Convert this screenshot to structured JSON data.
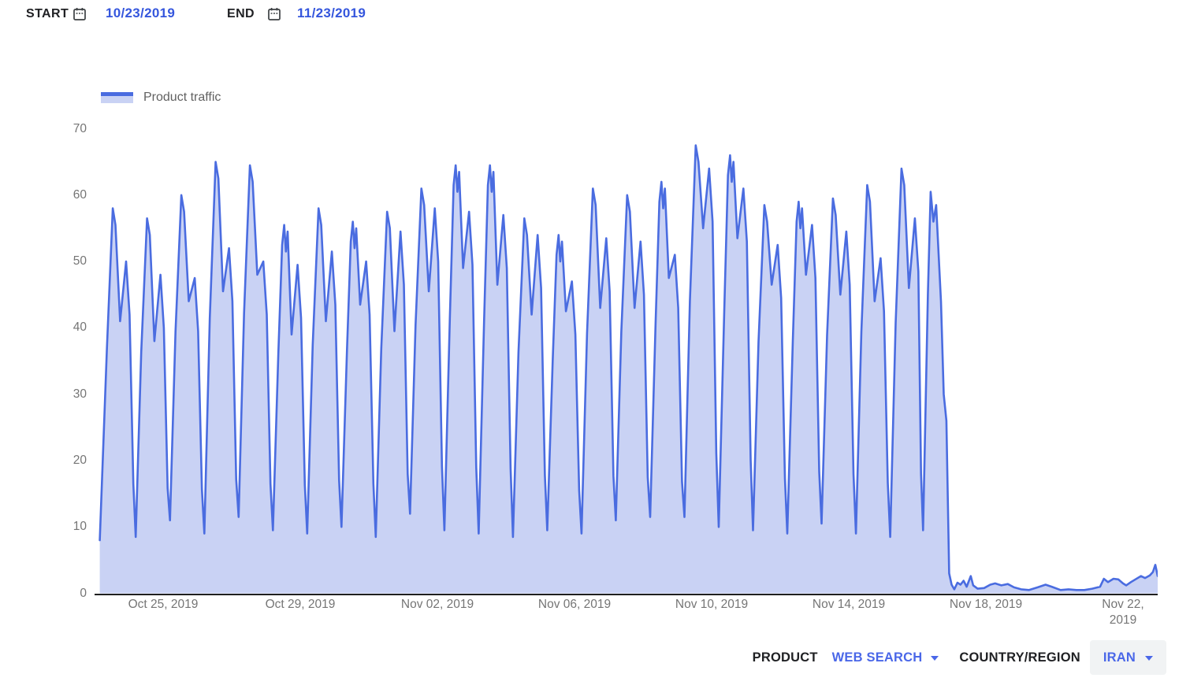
{
  "header": {
    "start_label": "START",
    "start_value": "10/23/2019",
    "end_label": "END",
    "end_value": "11/23/2019"
  },
  "legend": {
    "label": "Product traffic"
  },
  "footer": {
    "product_label": "PRODUCT",
    "product_value": "WEB SEARCH",
    "country_label": "COUNTRY/REGION",
    "country_value": "IRAN"
  },
  "icons": [
    "calendar-icon",
    "chevron-down-icon"
  ],
  "colors": {
    "dark_text": "#202124",
    "date_blue": "#3556dd",
    "control_blue": "#4a67e8",
    "line_blue": "#4a6ce0",
    "fill_blue": "#c9d2f4",
    "axis_gray": "#757575",
    "legend_gray": "#616161",
    "chip_bg": "#f1f3f4"
  },
  "chart_data": {
    "type": "area",
    "series_name": "Product traffic",
    "title": "",
    "xlabel": "",
    "ylabel": "",
    "grid": false,
    "legend_position": "top-left",
    "y_axis": {
      "min": 0,
      "max": 70,
      "ticks": [
        0,
        10,
        20,
        30,
        40,
        50,
        60,
        70
      ]
    },
    "x_axis": {
      "start_date": "10/23/2019",
      "end_date": "11/23/2019",
      "span_days": 31,
      "tick_days": [
        2,
        6,
        10,
        14,
        18,
        22,
        26,
        30
      ],
      "tick_labels": [
        "Oct 25, 2019",
        "Oct 29, 2019",
        "Nov 02, 2019",
        "Nov 06, 2019",
        "Nov 10, 2019",
        "Nov 14, 2019",
        "Nov 18, 2019",
        "Nov 22,\n2019"
      ]
    },
    "first_point": [
      0.152,
      8
    ],
    "daily": [
      {
        "date": "Oct 23",
        "peak": 58,
        "midday_dip": 41,
        "evening_peak": 50,
        "night_min_after": 8.5,
        "double_top": false
      },
      {
        "date": "Oct 24",
        "peak": 56.5,
        "midday_dip": 38,
        "evening_peak": 48,
        "night_min_after": 11,
        "double_top": false
      },
      {
        "date": "Oct 25",
        "peak": 60,
        "midday_dip": 44,
        "evening_peak": 47.5,
        "night_min_after": 9,
        "double_top": false
      },
      {
        "date": "Oct 26",
        "peak": 65,
        "midday_dip": 45.5,
        "evening_peak": 52,
        "night_min_after": 11.5,
        "double_top": false
      },
      {
        "date": "Oct 27",
        "peak": 64.5,
        "midday_dip": 48,
        "evening_peak": 50,
        "night_min_after": 9.5,
        "double_top": false
      },
      {
        "date": "Oct 28",
        "peak": 55.5,
        "midday_dip": 39,
        "evening_peak": 49.5,
        "night_min_after": 9,
        "double_top": true
      },
      {
        "date": "Oct 29",
        "peak": 58,
        "midday_dip": 41,
        "evening_peak": 51.5,
        "night_min_after": 10,
        "double_top": false
      },
      {
        "date": "Oct 30",
        "peak": 56,
        "midday_dip": 43.5,
        "evening_peak": 50,
        "night_min_after": 8.5,
        "double_top": true
      },
      {
        "date": "Oct 31",
        "peak": 57.5,
        "midday_dip": 39.5,
        "evening_peak": 54.5,
        "night_min_after": 12,
        "double_top": false
      },
      {
        "date": "Nov 01",
        "peak": 61,
        "midday_dip": 45.5,
        "evening_peak": 58,
        "night_min_after": 9.5,
        "double_top": false
      },
      {
        "date": "Nov 02",
        "peak": 64.5,
        "midday_dip": 49,
        "evening_peak": 57.5,
        "night_min_after": 9,
        "double_top": true
      },
      {
        "date": "Nov 03",
        "peak": 64.5,
        "midday_dip": 46.5,
        "evening_peak": 57,
        "night_min_after": 8.5,
        "double_top": true
      },
      {
        "date": "Nov 04",
        "peak": 56.5,
        "midday_dip": 42,
        "evening_peak": 54,
        "night_min_after": 9.5,
        "double_top": false
      },
      {
        "date": "Nov 05",
        "peak": 54,
        "midday_dip": 42.5,
        "evening_peak": 47,
        "night_min_after": 9,
        "double_top": true
      },
      {
        "date": "Nov 06",
        "peak": 61,
        "midday_dip": 43,
        "evening_peak": 53.5,
        "night_min_after": 11,
        "double_top": false
      },
      {
        "date": "Nov 07",
        "peak": 60,
        "midday_dip": 43,
        "evening_peak": 53,
        "night_min_after": 11.5,
        "double_top": false
      },
      {
        "date": "Nov 08",
        "peak": 62,
        "midday_dip": 47.5,
        "evening_peak": 51,
        "night_min_after": 11.5,
        "double_top": true
      },
      {
        "date": "Nov 09",
        "peak": 67.5,
        "midday_dip": 55,
        "evening_peak": 64,
        "night_min_after": 10,
        "double_top": false
      },
      {
        "date": "Nov 10",
        "peak": 66,
        "midday_dip": 53.5,
        "evening_peak": 61,
        "night_min_after": 9.5,
        "double_top": true
      },
      {
        "date": "Nov 11",
        "peak": 58.5,
        "midday_dip": 46.5,
        "evening_peak": 52.5,
        "night_min_after": 9,
        "double_top": false
      },
      {
        "date": "Nov 12",
        "peak": 59,
        "midday_dip": 48,
        "evening_peak": 55.5,
        "night_min_after": 10.5,
        "double_top": true
      },
      {
        "date": "Nov 13",
        "peak": 59.5,
        "midday_dip": 45,
        "evening_peak": 54.5,
        "night_min_after": 9,
        "double_top": false
      },
      {
        "date": "Nov 14",
        "peak": 61.5,
        "midday_dip": 44,
        "evening_peak": 50.5,
        "night_min_after": 8.5,
        "double_top": false
      },
      {
        "date": "Nov 15",
        "peak": 64,
        "midday_dip": 46,
        "evening_peak": 56.5,
        "night_min_after": 9.5,
        "double_top": false
      }
    ],
    "day_shape": {
      "min_f": 0.2,
      "rise_f": 0.36,
      "rise_frac": 0.58,
      "peak_f": 0.53,
      "shoulder_f": 0.61,
      "shoulder_drop": 2.5,
      "double_top_shape": {
        "pre_f": 0.47,
        "pre_drop": 3.0,
        "peak_f": 0.53,
        "notch_f": 0.58,
        "notch_drop": 4.0,
        "top2_f": 0.63,
        "top2_drop": 1.0
      },
      "dip_f": 0.745,
      "second_f": 0.92,
      "fall1_f": 1.02,
      "fall1_drop": 8,
      "fall2_f": 1.13,
      "fall2_frac": 0.33
    },
    "shutdown_day": {
      "date": "Nov 16",
      "points": [
        [
          24.1,
          18
        ],
        [
          24.16,
          9.5
        ],
        [
          24.3,
          45
        ],
        [
          24.38,
          60.5
        ],
        [
          24.46,
          56
        ],
        [
          24.54,
          58.5
        ],
        [
          24.68,
          44
        ],
        [
          24.76,
          30
        ],
        [
          24.84,
          26
        ],
        [
          24.92,
          3
        ],
        [
          24.99,
          1.3
        ]
      ]
    },
    "shutdown_tail": [
      [
        25.07,
        0.6
      ],
      [
        25.16,
        1.6
      ],
      [
        25.25,
        1.3
      ],
      [
        25.34,
        1.9
      ],
      [
        25.43,
        1.0
      ],
      [
        25.55,
        2.6
      ],
      [
        25.62,
        1.2
      ],
      [
        25.75,
        0.7
      ],
      [
        25.94,
        0.8
      ],
      [
        26.12,
        1.3
      ],
      [
        26.26,
        1.5
      ],
      [
        26.44,
        1.2
      ],
      [
        26.63,
        1.4
      ],
      [
        26.81,
        0.9
      ],
      [
        27.02,
        0.6
      ],
      [
        27.25,
        0.5
      ],
      [
        27.5,
        0.9
      ],
      [
        27.73,
        1.3
      ],
      [
        27.91,
        1.0
      ],
      [
        28.17,
        0.5
      ],
      [
        28.4,
        0.6
      ],
      [
        28.63,
        0.5
      ],
      [
        28.86,
        0.5
      ],
      [
        29.09,
        0.7
      ],
      [
        29.32,
        1.0
      ],
      [
        29.43,
        2.2
      ],
      [
        29.55,
        1.7
      ],
      [
        29.71,
        2.2
      ],
      [
        29.85,
        2.1
      ],
      [
        29.99,
        1.5
      ],
      [
        30.08,
        1.2
      ],
      [
        30.22,
        1.7
      ],
      [
        30.35,
        2.1
      ],
      [
        30.51,
        2.6
      ],
      [
        30.63,
        2.3
      ],
      [
        30.77,
        2.7
      ],
      [
        30.86,
        3.2
      ],
      [
        30.93,
        4.3
      ],
      [
        31.0,
        2.6
      ]
    ]
  }
}
